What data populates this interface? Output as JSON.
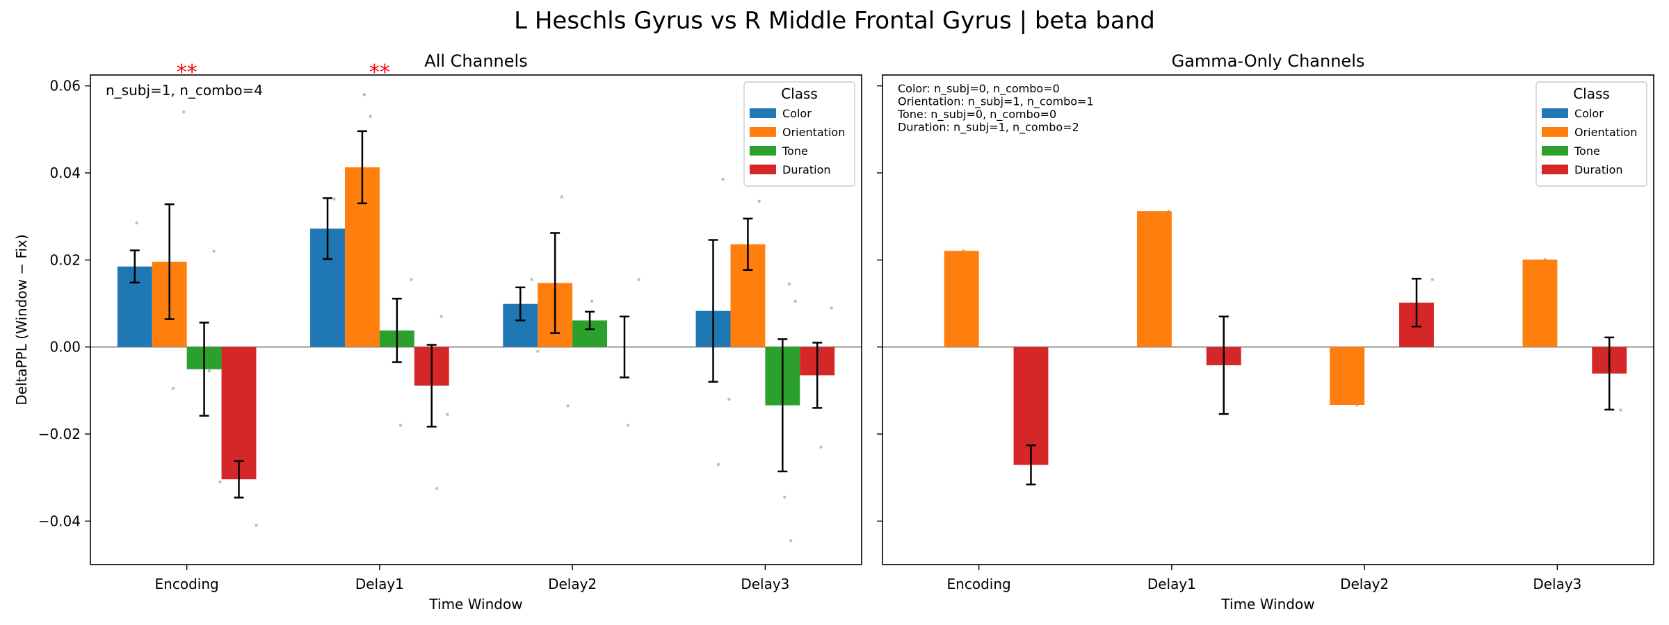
{
  "figure": {
    "suptitle": "L Heschls Gyrus vs R Middle Frontal Gyrus  |  beta band"
  },
  "colors": {
    "Color": "#1f77b4",
    "Orientation": "#ff7f0e",
    "Tone": "#2ca02c",
    "Duration": "#d62728",
    "significance": "#ff0000",
    "error_bar": "#000000",
    "zero_line": "#808080",
    "jitter_points": "#bdbdbd"
  },
  "chart_data": [
    {
      "type": "bar",
      "title": "All Channels",
      "xlabel": "Time Window",
      "ylabel": "DeltaPPL (Window − Fix)",
      "ylim": [
        -0.05,
        0.0625
      ],
      "yticks": [
        -0.04,
        -0.02,
        0.0,
        0.02,
        0.04,
        0.06
      ],
      "ytick_labels": [
        "−0.04",
        "−0.02",
        "0.00",
        "0.02",
        "0.04",
        "0.06"
      ],
      "categories": [
        "Encoding",
        "Delay1",
        "Delay2",
        "Delay3"
      ],
      "annotation": "n_subj=1, n_combo=4",
      "significance": [
        "**",
        "**",
        "",
        ""
      ],
      "legend": {
        "title": "Class",
        "position": "top-right"
      },
      "series": [
        {
          "name": "Color",
          "values": [
            0.0185,
            0.0272,
            0.0099,
            0.0083
          ],
          "errors": [
            0.0037,
            0.007,
            0.0038,
            0.0163
          ]
        },
        {
          "name": "Orientation",
          "values": [
            0.0196,
            0.0413,
            0.0147,
            0.0236
          ],
          "errors": [
            0.0132,
            0.0083,
            0.0115,
            0.0059
          ]
        },
        {
          "name": "Tone",
          "values": [
            -0.0051,
            0.0038,
            0.0061,
            -0.0134
          ],
          "errors": [
            0.0107,
            0.0073,
            0.002,
            0.0152
          ]
        },
        {
          "name": "Duration",
          "values": [
            -0.0304,
            -0.0089,
            0.0,
            -0.0065
          ],
          "errors": [
            0.0042,
            0.0094,
            0.007,
            0.0075
          ]
        }
      ],
      "points": [
        {
          "cat": 0,
          "s": 0,
          "y": 0.0285
        },
        {
          "cat": 0,
          "s": 0,
          "y": 0.012
        },
        {
          "cat": 0,
          "s": 1,
          "y": 0.054
        },
        {
          "cat": 0,
          "s": 1,
          "y": -0.0095
        },
        {
          "cat": 0,
          "s": 2,
          "y": 0.022
        },
        {
          "cat": 0,
          "s": 2,
          "y": -0.031
        },
        {
          "cat": 0,
          "s": 2,
          "y": -0.0055
        },
        {
          "cat": 0,
          "s": 3,
          "y": -0.0225
        },
        {
          "cat": 0,
          "s": 3,
          "y": -0.041
        },
        {
          "cat": 1,
          "s": 0,
          "y": 0.034
        },
        {
          "cat": 1,
          "s": 0,
          "y": 0.0065
        },
        {
          "cat": 1,
          "s": 1,
          "y": 0.058
        },
        {
          "cat": 1,
          "s": 1,
          "y": 0.053
        },
        {
          "cat": 1,
          "s": 2,
          "y": 0.0155
        },
        {
          "cat": 1,
          "s": 2,
          "y": -0.018
        },
        {
          "cat": 1,
          "s": 3,
          "y": 0.007
        },
        {
          "cat": 1,
          "s": 3,
          "y": -0.0155
        },
        {
          "cat": 1,
          "s": 3,
          "y": -0.0325
        },
        {
          "cat": 2,
          "s": 0,
          "y": 0.0155
        },
        {
          "cat": 2,
          "s": 0,
          "y": -0.001
        },
        {
          "cat": 2,
          "s": 1,
          "y": 0.0345
        },
        {
          "cat": 2,
          "s": 1,
          "y": -0.0135
        },
        {
          "cat": 2,
          "s": 2,
          "y": 0.0105
        },
        {
          "cat": 2,
          "s": 2,
          "y": 0.004
        },
        {
          "cat": 2,
          "s": 3,
          "y": 0.0155
        },
        {
          "cat": 2,
          "s": 3,
          "y": -0.018
        },
        {
          "cat": 3,
          "s": 0,
          "y": 0.0385
        },
        {
          "cat": 3,
          "s": 0,
          "y": -0.012
        },
        {
          "cat": 3,
          "s": 0,
          "y": -0.027
        },
        {
          "cat": 3,
          "s": 1,
          "y": 0.0335
        },
        {
          "cat": 3,
          "s": 1,
          "y": 0.0415
        },
        {
          "cat": 3,
          "s": 2,
          "y": 0.0145
        },
        {
          "cat": 3,
          "s": 2,
          "y": 0.0105
        },
        {
          "cat": 3,
          "s": 2,
          "y": -0.0345
        },
        {
          "cat": 3,
          "s": 2,
          "y": -0.0445
        },
        {
          "cat": 3,
          "s": 3,
          "y": 0.009
        },
        {
          "cat": 3,
          "s": 3,
          "y": -0.023
        }
      ]
    },
    {
      "type": "bar",
      "title": "Gamma-Only Channels",
      "xlabel": "Time Window",
      "ylabel": "",
      "ylim": [
        -0.05,
        0.0625
      ],
      "yticks": [
        -0.04,
        -0.02,
        0.0,
        0.02,
        0.04,
        0.06
      ],
      "ytick_labels": [
        "",
        "",
        "",
        "",
        "",
        ""
      ],
      "categories": [
        "Encoding",
        "Delay1",
        "Delay2",
        "Delay3"
      ],
      "annotation_lines": [
        "Color: n_subj=0, n_combo=0",
        "Orientation: n_subj=1, n_combo=1",
        "Tone: n_subj=0, n_combo=0",
        "Duration: n_subj=1, n_combo=2"
      ],
      "significance": [
        "",
        "",
        "",
        ""
      ],
      "legend": {
        "title": "Class",
        "position": "top-right"
      },
      "series": [
        {
          "name": "Color",
          "values": [
            null,
            null,
            null,
            null
          ],
          "errors": [
            null,
            null,
            null,
            null
          ]
        },
        {
          "name": "Orientation",
          "values": [
            0.0221,
            0.0312,
            -0.0133,
            0.0201
          ],
          "errors": [
            0,
            0,
            0,
            0
          ]
        },
        {
          "name": "Tone",
          "values": [
            null,
            null,
            null,
            null
          ],
          "errors": [
            null,
            null,
            null,
            null
          ]
        },
        {
          "name": "Duration",
          "values": [
            -0.0271,
            -0.0042,
            0.0102,
            -0.0061
          ],
          "errors": [
            0.0045,
            0.0112,
            0.0055,
            0.0083
          ]
        }
      ],
      "points": [
        {
          "cat": 0,
          "s": 1,
          "y": 0.0221
        },
        {
          "cat": 0,
          "s": 3,
          "y": -0.0225
        },
        {
          "cat": 1,
          "s": 1,
          "y": 0.0312
        },
        {
          "cat": 1,
          "s": 3,
          "y": 0.007
        },
        {
          "cat": 2,
          "s": 1,
          "y": -0.0133
        },
        {
          "cat": 2,
          "s": 3,
          "y": 0.0155
        },
        {
          "cat": 3,
          "s": 1,
          "y": 0.0201
        },
        {
          "cat": 3,
          "s": 3,
          "y": -0.0145
        }
      ]
    }
  ]
}
